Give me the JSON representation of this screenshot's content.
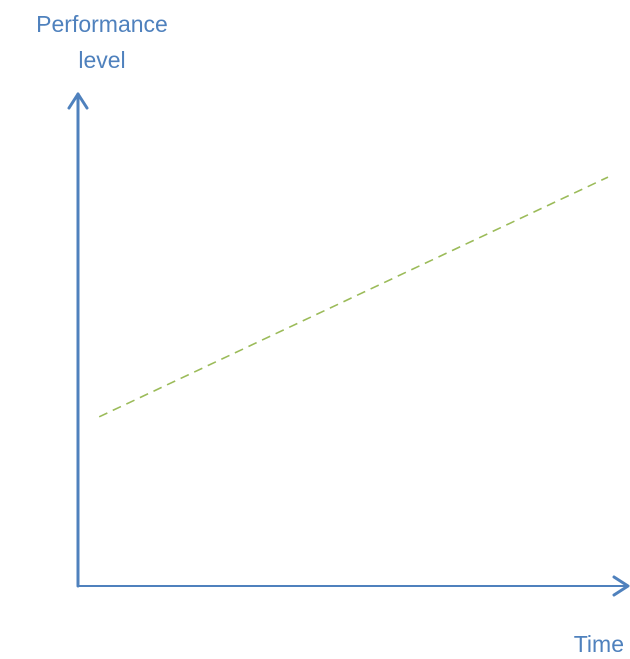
{
  "chart_data": {
    "type": "line",
    "title": "",
    "ylabel_lines": [
      "Performance",
      "level"
    ],
    "xlabel": "Time",
    "ticks": "none",
    "grid": false,
    "series": [
      {
        "style": "dashed",
        "color": "#9bbb59",
        "x": [
          0.04,
          1.0
        ],
        "y": [
          0.36,
          0.87
        ]
      }
    ]
  },
  "colors": {
    "axis": "#4f81bd",
    "label": "#4f81bd",
    "series": "#9bbb59"
  }
}
